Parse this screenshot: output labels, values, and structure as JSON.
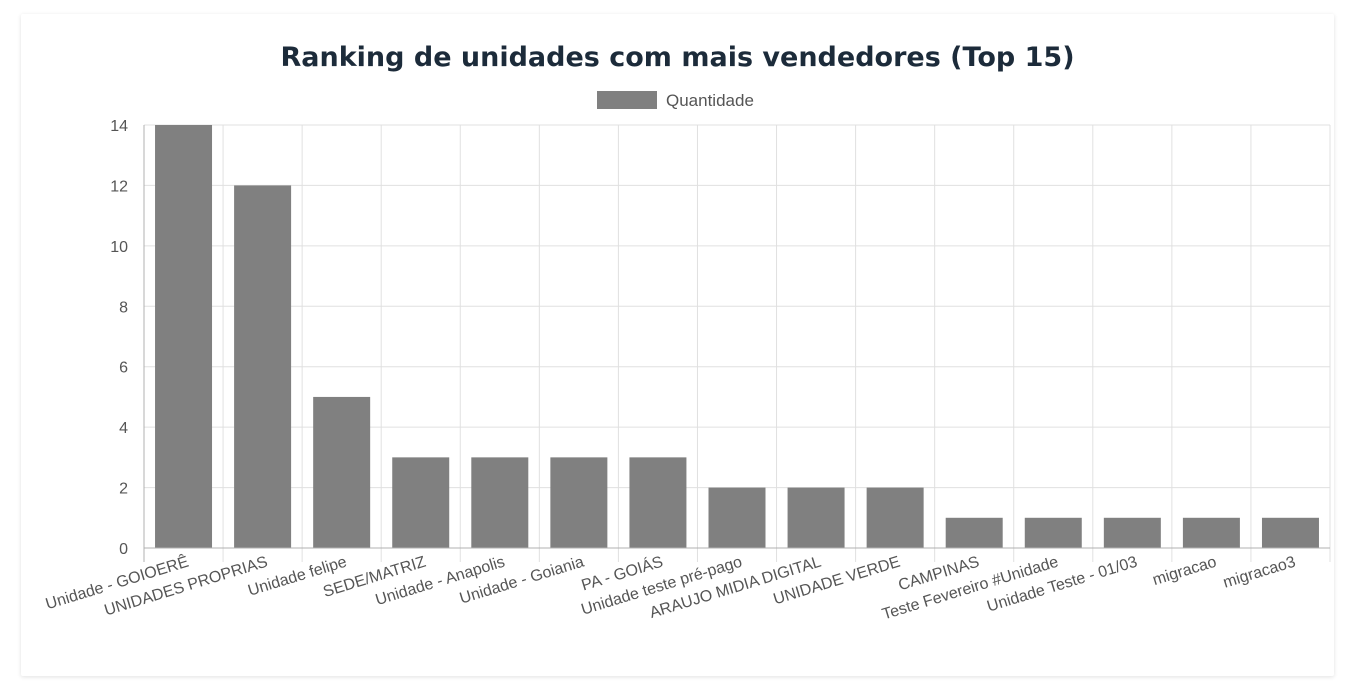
{
  "chart_data": {
    "type": "bar",
    "title": "Ranking de unidades com mais vendedores (Top 15)",
    "legend": {
      "position": "top",
      "label": "Quantidade"
    },
    "colors": {
      "bar": "#808080",
      "grid": "#e0e0e0",
      "axis": "#b0b0b0",
      "title": "#1c2b3a"
    },
    "grid": true,
    "ylim": [
      0,
      14
    ],
    "yticks": [
      "0",
      "2",
      "4",
      "6",
      "8",
      "10",
      "12",
      "14"
    ],
    "categories": [
      "Unidade - GOIOERÊ",
      "UNIDADES PROPRIAS",
      "Unidade felipe",
      "SEDE/MATRIZ",
      "Unidade - Anapolis",
      "Unidade - Goiania",
      "PA - GOIÁS",
      "Unidade teste pré-pago",
      "ARAUJO MIDIA DIGITAL",
      "UNIDADE VERDE",
      "CAMPINAS",
      "Teste Fevereiro #Unidade",
      "Unidade Teste - 01/03",
      "migracao",
      "migracao3"
    ],
    "series": [
      {
        "name": "Quantidade",
        "values": [
          14,
          12,
          5,
          3,
          3,
          3,
          3,
          2,
          2,
          2,
          1,
          1,
          1,
          1,
          1
        ]
      }
    ]
  }
}
